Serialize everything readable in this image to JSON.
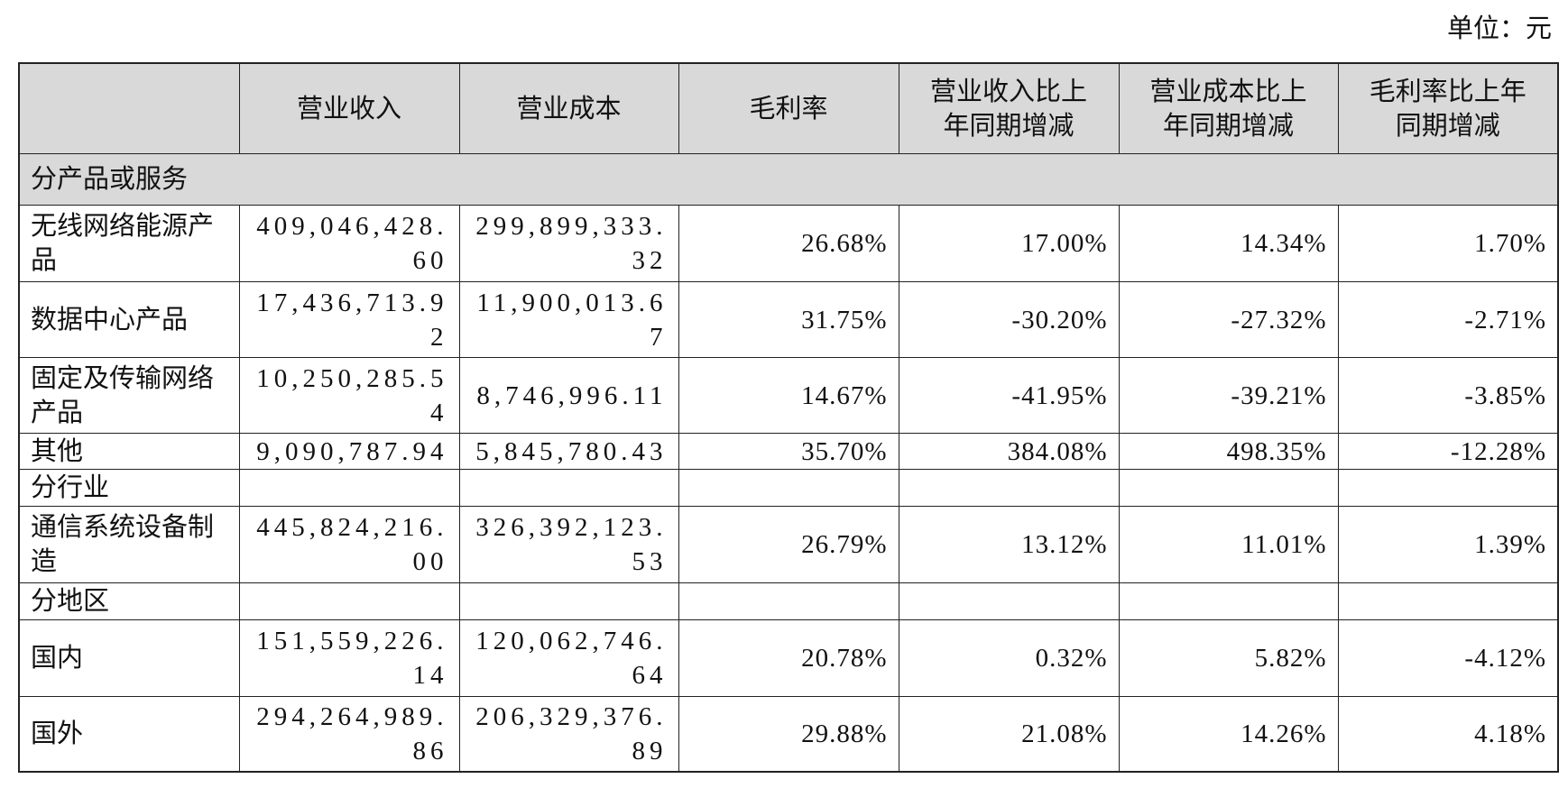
{
  "unit": "单位：元",
  "table": {
    "header": [
      "营业收入",
      "营业成本",
      "毛利率",
      "营业收入比上年同期增减",
      "营业成本比上年同期增减",
      "毛利率比上年同期增减"
    ],
    "groups": [
      {
        "label": "分产品或服务",
        "rows": [
          [
            "无线网络能源产品",
            "409,046,428.60",
            "299,899,333.32",
            "26.68%",
            "17.00%",
            "14.34%",
            "1.70%"
          ],
          [
            "数据中心产品",
            "17,436,713.92",
            "11,900,013.67",
            "31.75%",
            "-30.20%",
            "-27.32%",
            "-2.71%"
          ],
          [
            "固定及传输网络产品",
            "10,250,285.54",
            "8,746,996.11",
            "14.67%",
            "-41.95%",
            "-39.21%",
            "-3.85%"
          ],
          [
            "其他",
            "9,090,787.94",
            "5,845,780.43",
            "35.70%",
            "384.08%",
            "498.35%",
            "-12.28%"
          ]
        ]
      },
      {
        "label": "分行业",
        "rows": [
          [
            "通信系统设备制造",
            "445,824,216.00",
            "326,392,123.53",
            "26.79%",
            "13.12%",
            "11.01%",
            "1.39%"
          ]
        ]
      },
      {
        "label": "分地区",
        "rows": [
          [
            "国内",
            "151,559,226.14",
            "120,062,746.64",
            "20.78%",
            "0.32%",
            "5.82%",
            "-4.12%"
          ],
          [
            "国外",
            "294,264,989.86",
            "206,329,376.89",
            "29.88%",
            "21.08%",
            "14.26%",
            "4.18%"
          ]
        ]
      }
    ]
  }
}
